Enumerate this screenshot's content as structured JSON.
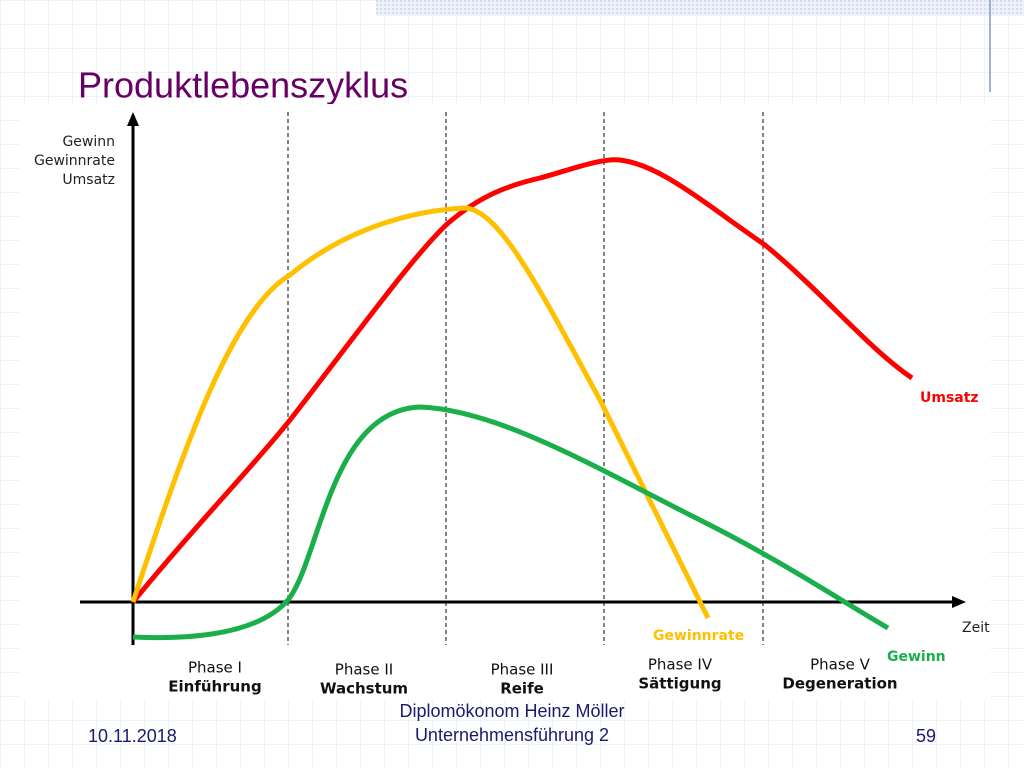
{
  "title": "Produktlebenszyklus",
  "y_axis_label": [
    "Gewinn",
    "Gewinnrate",
    "Umsatz"
  ],
  "x_axis_label": "Zeit",
  "phases": [
    {
      "name": "Phase I",
      "label": "Einführung"
    },
    {
      "name": "Phase II",
      "label": "Wachstum"
    },
    {
      "name": "Phase III",
      "label": "Reife"
    },
    {
      "name": "Phase IV",
      "label": "Sättigung"
    },
    {
      "name": "Phase V",
      "label": "Degeneration"
    }
  ],
  "curve_labels": {
    "umsatz": "Umsatz",
    "gewinnrate": "Gewinnrate",
    "gewinn": "Gewinn"
  },
  "footer": {
    "date": "10.11.2018",
    "author": "Diplomökonom Heinz Möller",
    "course": "Unternehmensführung 2",
    "page": 59
  }
}
